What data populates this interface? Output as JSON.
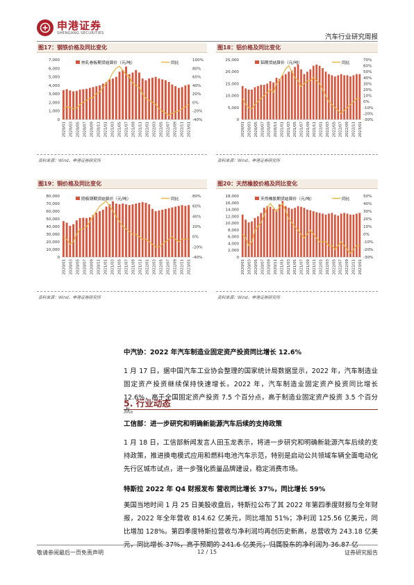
{
  "header": {
    "logo_cn": "申港证券",
    "logo_en": "SHENGANG SECURITIES",
    "report_type": "汽车行业研究周报"
  },
  "colors": {
    "bar": "#d9533b",
    "line": "#e8b23c",
    "accent": "#8b2d2d"
  },
  "figures": [
    {
      "title": "图17：钢铁价格及同比变化",
      "source": "资料来源：Wind，申港证券研究所"
    },
    {
      "title": "图18：铝价格及同比变化",
      "source": "资料来源：Wind，申港证券研究所"
    },
    {
      "title": "图19：铜价格及同比变化",
      "source": "资料来源：Wind，申港证券研究所"
    },
    {
      "title": "图20：天然橡胶价格及同比变化",
      "source": "资料来源：Wind，申港证券研究所"
    }
  ],
  "chart_data": [
    {
      "type": "bar",
      "legend_bar": "热轧卷板期货结算价（元/吨）",
      "legend_line": "同比",
      "x_ticks": [
        "2020/01",
        "2020/03",
        "2020/05",
        "2020/07",
        "2020/09",
        "2020/11",
        "2021/01",
        "2021/03",
        "2021/05",
        "2021/07",
        "2021/09",
        "2021/11",
        "2022/01",
        "2022/03",
        "2022/05",
        "2022/07",
        "2022/09",
        "2022/11",
        "2023/01"
      ],
      "ylim_left": [
        0,
        7000
      ],
      "yticks_left": [
        "0",
        "1,000",
        "2,000",
        "3,000",
        "4,000",
        "5,000",
        "6,000",
        "7,000"
      ],
      "ylim_right": [
        -40,
        100
      ],
      "yticks_right": [
        "-40%",
        "-20%",
        "0%",
        "20%",
        "40%",
        "60%",
        "80%",
        "100%"
      ],
      "bar_values": [
        3450,
        3550,
        3400,
        3300,
        3350,
        3500,
        3550,
        3600,
        3700,
        3800,
        3900,
        4000,
        4200,
        4400,
        4700,
        4800,
        5000,
        5600,
        5800,
        6200,
        5300,
        5500,
        5800,
        5500,
        4800,
        4600,
        4800,
        4900,
        5000,
        4800,
        4700,
        4600,
        4400,
        4100,
        3900,
        3700,
        3800,
        4000,
        4100
      ],
      "line_values": [
        -15,
        -10,
        -12,
        -15,
        -13,
        -5,
        0,
        5,
        10,
        12,
        20,
        25,
        35,
        45,
        55,
        70,
        80,
        85,
        75,
        65,
        60,
        45,
        40,
        35,
        20,
        10,
        5,
        0,
        -5,
        -15,
        -20,
        -25,
        -30,
        -25,
        -22,
        -20,
        -15,
        -10,
        -5
      ]
    },
    {
      "type": "bar",
      "legend_bar": "铝期货结算价（元/吨）",
      "legend_line": "同比",
      "x_ticks": [
        "2020/01",
        "2020/03",
        "2020/05",
        "2020/07",
        "2020/09",
        "2020/11",
        "2021/01",
        "2021/03",
        "2021/05",
        "2021/07",
        "2021/09",
        "2021/11",
        "2022/01",
        "2022/03",
        "2022/05",
        "2022/07",
        "2022/09",
        "2022/11",
        "2023/01"
      ],
      "ylim_left": [
        0,
        25000
      ],
      "yticks_left": [
        "0",
        "5,000",
        "10,000",
        "15,000",
        "20,000",
        "25,000"
      ],
      "ylim_right": [
        -30,
        70
      ],
      "yticks_right": [
        "-30%",
        "-20%",
        "-10%",
        "0%",
        "10%",
        "20%",
        "30%",
        "40%",
        "50%",
        "60%",
        "70%"
      ],
      "bar_values": [
        14000,
        13000,
        12500,
        12500,
        13500,
        14000,
        14500,
        14500,
        15000,
        16000,
        15500,
        17500,
        17000,
        18500,
        19000,
        20000,
        20500,
        22000,
        23000,
        21000,
        19000,
        20000,
        21000,
        22500,
        23000,
        22500,
        21500,
        20000,
        19000,
        18500,
        18000,
        18500,
        19000,
        18500,
        18500,
        18000,
        18500,
        19000,
        19000
      ],
      "line_values": [
        5,
        -5,
        -10,
        -12,
        -5,
        0,
        5,
        10,
        15,
        20,
        15,
        30,
        35,
        45,
        55,
        60,
        50,
        40,
        35,
        25,
        30,
        35,
        35,
        40,
        35,
        30,
        20,
        10,
        0,
        -5,
        -10,
        -15,
        -20,
        -15,
        -10,
        -5,
        0,
        5,
        5
      ]
    },
    {
      "type": "bar",
      "legend_bar": "阴极铜期货结算价（元/吨）",
      "legend_line": "同比",
      "x_ticks": [
        "2020/01",
        "2020/03",
        "2020/05",
        "2020/07",
        "2020/09",
        "2020/11",
        "2021/01",
        "2021/03",
        "2021/05",
        "2021/07",
        "2021/09",
        "2021/11",
        "2022/01",
        "2022/03",
        "2022/05",
        "2022/07",
        "2022/09",
        "2022/11",
        "2023/01"
      ],
      "ylim_left": [
        0,
        80000
      ],
      "yticks_left": [
        "0",
        "10,000",
        "20,000",
        "30,000",
        "40,000",
        "50,000",
        "60,000",
        "70,000",
        "80,000"
      ],
      "ylim_right": [
        -40,
        80
      ],
      "yticks_right": [
        "-40%",
        "-20%",
        "0%",
        "20%",
        "40%",
        "60%",
        "80%"
      ],
      "bar_values": [
        47000,
        45000,
        41000,
        43000,
        48000,
        51000,
        51500,
        51000,
        52000,
        55000,
        58000,
        60000,
        62000,
        66000,
        69000,
        73000,
        70000,
        69000,
        70000,
        69000,
        68000,
        69000,
        70000,
        71000,
        72000,
        71000,
        69000,
        63000,
        60000,
        61000,
        62000,
        63000,
        64000,
        65000,
        66000,
        67000,
        68000,
        67000,
        68000
      ],
      "line_values": [
        0,
        -5,
        -15,
        -10,
        5,
        15,
        15,
        20,
        30,
        40,
        50,
        60,
        65,
        70,
        60,
        50,
        40,
        30,
        20,
        15,
        10,
        5,
        5,
        0,
        -5,
        -5,
        -10,
        -15,
        -20,
        -20,
        -15,
        -10,
        -5,
        0,
        -5,
        -10,
        -5,
        -5,
        -5
      ]
    },
    {
      "type": "bar",
      "legend_bar": "天然橡胶期货结算价（元/吨）",
      "legend_line": "同比",
      "x_ticks": [
        "2020/01",
        "2020/03",
        "2020/05",
        "2020/07",
        "2020/09",
        "2020/11",
        "2021/01",
        "2021/03",
        "2021/05",
        "2021/07",
        "2021/09",
        "2021/11",
        "2022/01",
        "2022/03",
        "2022/05",
        "2022/07",
        "2022/09",
        "2022/11",
        "2023/01"
      ],
      "ylim_left": [
        0,
        18000
      ],
      "yticks_left": [
        "0",
        "2,000",
        "4,000",
        "6,000",
        "8,000",
        "10,000",
        "12,000",
        "14,000",
        "16,000",
        "18,000"
      ],
      "ylim_right": [
        -30,
        50
      ],
      "yticks_right": [
        "-30%",
        "-20%",
        "-10%",
        "0%",
        "10%",
        "20%",
        "30%",
        "40%",
        "50%"
      ],
      "bar_values": [
        12500,
        11000,
        10200,
        10500,
        11500,
        12000,
        13000,
        14500,
        15000,
        14800,
        14200,
        14000,
        15500,
        16500,
        15000,
        14500,
        14200,
        14500,
        15000,
        14800,
        14500,
        14000,
        13800,
        13500,
        13200,
        13000,
        12800,
        12500,
        12800,
        13000,
        12500,
        12200,
        12800,
        13000,
        12800,
        12500,
        12500,
        12800,
        13000
      ],
      "line_values": [
        0,
        -5,
        -15,
        -10,
        5,
        10,
        15,
        25,
        35,
        40,
        35,
        30,
        35,
        40,
        30,
        20,
        15,
        10,
        5,
        0,
        -5,
        0,
        5,
        0,
        -5,
        -10,
        -10,
        -10,
        -15,
        -15,
        -20,
        -15,
        -10,
        -15,
        -20,
        -25,
        -20,
        -15,
        -15
      ]
    }
  ],
  "section": {
    "title": "5. 行业动态"
  },
  "news": [
    {
      "headline": "中汽协：2022 年汽车制造业固定资产投资同比增长 12.6%",
      "body": "1 月 17 日，据中国汽车工业协会整理的国家统计局数据显示，2022 年，汽车制造业固定资产投资继续保持快速增长。2022 年，汽车制造业固定资产投资同比增长 12.6%，高于全国固定资产投资 7.5 个百分点，高于制造业固定资产投资 3.5 个百分点。"
    },
    {
      "headline": "工信部：进一步研究和明确新能源汽车后续的支持政策",
      "body": "1 月 18 日，工信部新闻发言人田玉龙表示，将进一步研究和明确新能源汽车后续的支持政策，推进换电模式应用和燃料电池汽车示范，特别是启动公共领域车辆全面电动化先行区城市试点，进一步强化质量品牌建设，稳定消费市场。"
    },
    {
      "headline": "特斯拉 2022 年 Q4 财报发布 营收同比增长 37%，同比增长 59%",
      "body": "美国当地时间 1 月 25 日美股收盘后，特斯拉公布了其 2022 年第四季度财报与全年财报，2022 年全年营收 814.62 亿美元，同比增加 51%；净利润 125.56 亿美元，同比增加 128%。第四季度特斯拉营收与净利润均再创历史新高，总营收为 243.18 亿美元，同比增长 37%，高于预期的 241.6 亿美元；归属股东的净利润为 36.87 亿"
    }
  ],
  "footer": {
    "disclaimer": "敬请参阅最后一页免责声明",
    "page": "12 / 15",
    "report_label": "证券研究报告"
  }
}
